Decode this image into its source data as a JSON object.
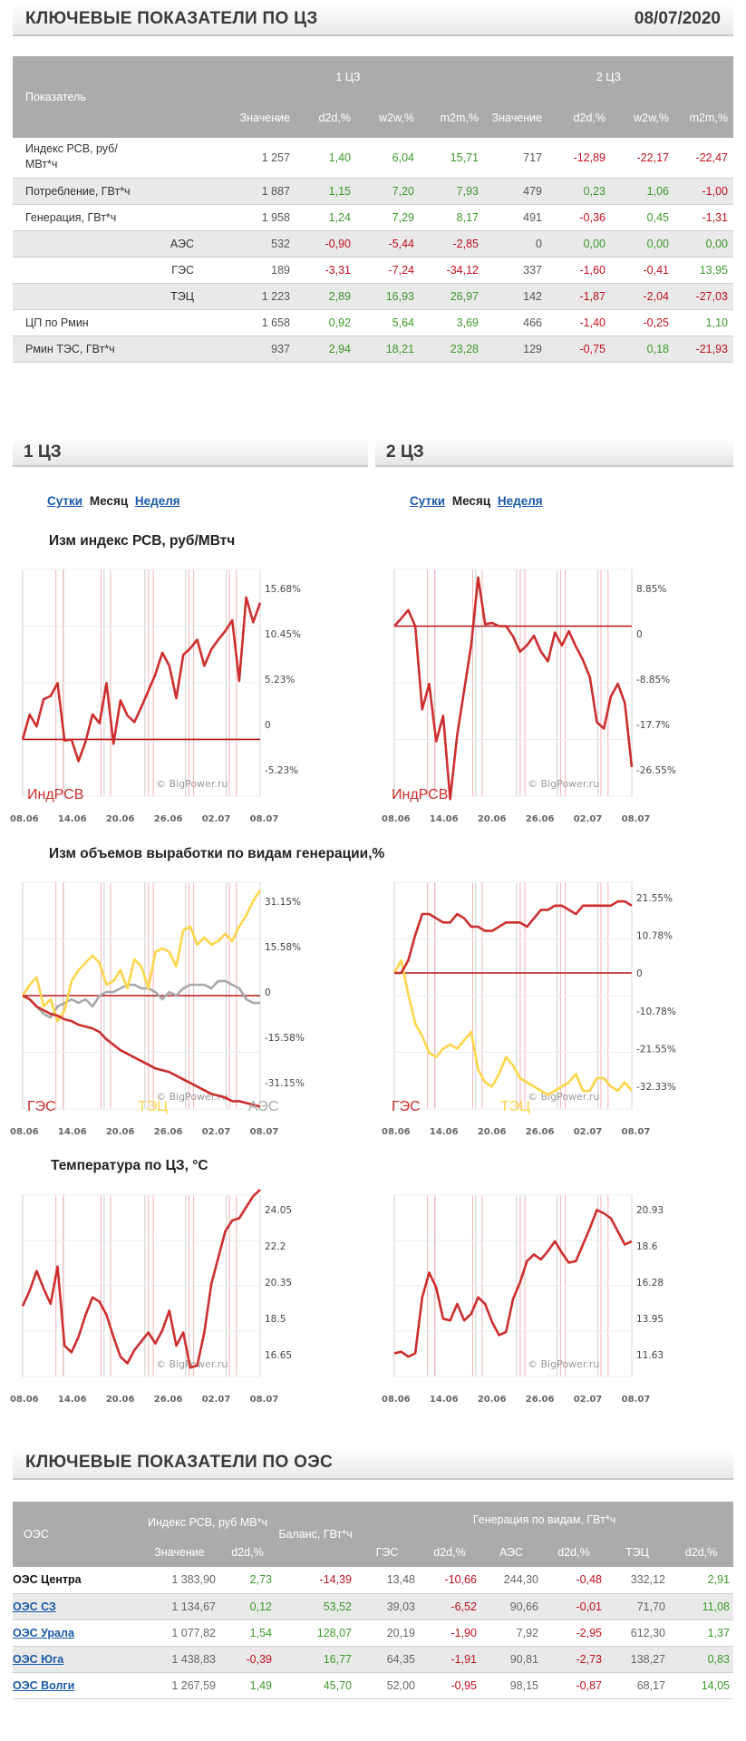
{
  "header": {
    "title": "КЛЮЧЕВЫЕ ПОКАЗАТЕЛИ ПО ЦЗ",
    "date": "08/07/2020"
  },
  "kpi": {
    "col_indicator": "Показатель",
    "zone1": "1 ЦЗ",
    "zone2": "2 ЦЗ",
    "subcols": [
      "Значение",
      "d2d,%",
      "w2w,%",
      "m2m,%",
      "Значение",
      "d2d,%",
      "w2w,%",
      "m2m,%"
    ],
    "rows": [
      {
        "label": "Индекс РСВ, руб/МВт*ч",
        "indent": false,
        "values": [
          "1 257",
          "1,40",
          "6,04",
          "15,71",
          "717",
          "-12,89",
          "-22,17",
          "-22,47"
        ]
      },
      {
        "label": "Потребление, ГВт*ч",
        "indent": false,
        "values": [
          "1 887",
          "1,15",
          "7,20",
          "7,93",
          "479",
          "0,23",
          "1,06",
          "-1,00"
        ]
      },
      {
        "label": "Генерация, ГВт*ч",
        "indent": false,
        "values": [
          "1 958",
          "1,24",
          "7,29",
          "8,17",
          "491",
          "-0,36",
          "0,45",
          "-1,31"
        ]
      },
      {
        "label": "АЭС",
        "indent": true,
        "values": [
          "532",
          "-0,90",
          "-5,44",
          "-2,85",
          "0",
          "0,00",
          "0,00",
          "0,00"
        ]
      },
      {
        "label": "ГЭС",
        "indent": true,
        "values": [
          "189",
          "-3,31",
          "-7,24",
          "-34,12",
          "337",
          "-1,60",
          "-0,41",
          "13,95"
        ]
      },
      {
        "label": "ТЭЦ",
        "indent": true,
        "values": [
          "1 223",
          "2,89",
          "16,93",
          "26,97",
          "142",
          "-1,87",
          "-2,04",
          "-27,03"
        ]
      },
      {
        "label": "ЦП по Рмин",
        "indent": false,
        "values": [
          "1 658",
          "0,92",
          "5,64",
          "3,69",
          "466",
          "-1,40",
          "-0,25",
          "1,10"
        ]
      },
      {
        "label": "Рмин ТЭС, ГВт*ч",
        "indent": false,
        "values": [
          "937",
          "2,94",
          "18,21",
          "23,28",
          "129",
          "-0,75",
          "0,18",
          "-21,93"
        ]
      }
    ]
  },
  "zones": {
    "z1": {
      "title": "1 ЦЗ",
      "periods": {
        "day": "Сутки",
        "month": "Месяц",
        "week": "Неделя"
      }
    },
    "z2": {
      "title": "2 ЦЗ",
      "periods": {
        "day": "Сутки",
        "month": "Месяц",
        "week": "Неделя"
      }
    }
  },
  "chart_titles": {
    "price": "Изм индекс РСВ, руб/МВтч",
    "gen": "Изм объемов выработки по видам генерации,%",
    "temp": "Температура по ЦЗ, °С"
  },
  "watermark": "© BigPower.ru",
  "colors": {
    "red": "#cc2e2e",
    "yellow": "#ffd54a",
    "gray": "#a8a8a8",
    "pos": "#3c9a2a",
    "neg": "#c0101e",
    "header": "#ababab"
  },
  "chart_data": [
    {
      "id": "price_z1",
      "type": "line",
      "x_ticks": [
        "08.06",
        "14.06",
        "20.06",
        "26.06",
        "02.07",
        "08.07"
      ],
      "y_ticks": [
        "15.68%",
        "10.45%",
        "5.23%",
        "0",
        "-5.23%"
      ],
      "ylim": [
        -5.23,
        15.68
      ],
      "series": [
        {
          "name": "ИндРСВ",
          "values": [
            0,
            2.3,
            1.2,
            3.7,
            4.0,
            5.2,
            -0.1,
            0,
            -2.0,
            -0.2,
            2.3,
            1.5,
            5.2,
            -0.4,
            3.6,
            2.2,
            1.6,
            3.0,
            4.5,
            6.0,
            8.0,
            6.8,
            3.8,
            7.8,
            8.4,
            9.2,
            6.8,
            8.3,
            9.2,
            10.0,
            11.0,
            5.4,
            13.1,
            10.8,
            12.6
          ]
        }
      ]
    },
    {
      "id": "price_z2",
      "type": "line",
      "x_ticks": [
        "08.06",
        "14.06",
        "20.06",
        "26.06",
        "02.07",
        "08.07"
      ],
      "y_ticks": [
        "8.85%",
        "0",
        "-8.85%",
        "-17.7%",
        "-26.55%"
      ],
      "ylim": [
        -26.55,
        8.85
      ],
      "series": [
        {
          "name": "ИндРСВ",
          "values": [
            0,
            1.2,
            2.5,
            0,
            -13,
            -9,
            -18,
            -14,
            -27,
            -17,
            -10,
            -3,
            7.6,
            0.3,
            0.5,
            0,
            0,
            -1.6,
            -4,
            -3,
            -1.5,
            -4,
            -5.5,
            -1,
            -3,
            -0.8,
            -3.2,
            -5.3,
            -8,
            -15,
            -16,
            -11,
            -9,
            -12,
            -22
          ]
        }
      ]
    },
    {
      "id": "gen_z1",
      "type": "line",
      "x_ticks": [
        "08.06",
        "14.06",
        "20.06",
        "26.06",
        "02.07",
        "08.07"
      ],
      "y_ticks": [
        "31.15%",
        "15.58%",
        "0",
        "-15.58%",
        "-31.15%"
      ],
      "ylim": [
        -31.15,
        31.15
      ],
      "series": [
        {
          "name": "ГЭС",
          "values": [
            0,
            -1,
            -3,
            -4,
            -5,
            -5.5,
            -6.5,
            -7,
            -8,
            -8.5,
            -9,
            -10,
            -12,
            -13.5,
            -15,
            -16,
            -17,
            -18,
            -19,
            -20,
            -20.5,
            -21,
            -22,
            -23,
            -24,
            -25,
            -26,
            -27,
            -27.5,
            -28,
            -29,
            -29,
            -29.5,
            -30,
            -30.5
          ]
        },
        {
          "name": "ТЭЦ",
          "values": [
            0,
            3,
            5,
            -3,
            -1,
            -7,
            -4,
            4,
            7,
            9,
            11,
            9,
            3,
            4,
            7,
            2,
            10,
            8,
            2,
            12,
            13,
            12,
            8,
            18,
            19,
            14,
            16,
            14,
            15,
            17,
            15,
            19,
            22,
            26,
            29
          ]
        },
        {
          "name": "АЭС",
          "values": [
            0,
            -1,
            -3,
            -5,
            -6,
            -3,
            -2,
            -1,
            -2,
            -1,
            -3,
            0,
            1,
            1,
            2,
            3,
            3,
            2,
            2,
            1,
            -1,
            1,
            0,
            2,
            3,
            3,
            3,
            2,
            4,
            4,
            3,
            2,
            -1,
            -2,
            -2
          ]
        }
      ]
    },
    {
      "id": "gen_z2",
      "type": "line",
      "x_ticks": [
        "08.06",
        "14.06",
        "20.06",
        "26.06",
        "02.07",
        "08.07"
      ],
      "y_ticks": [
        "21.55%",
        "10.78%",
        "0",
        "-10.78%",
        "-21.55%",
        "-32.33%"
      ],
      "ylim": [
        -32.33,
        21.55
      ],
      "series": [
        {
          "name": "ГЭС",
          "values": [
            0,
            0,
            3,
            9,
            14,
            14,
            13,
            12,
            12,
            14,
            13,
            11,
            11,
            10,
            10,
            11,
            12,
            12,
            12,
            11,
            13,
            15,
            15,
            16,
            16,
            15,
            14,
            16,
            16,
            16,
            16,
            16,
            17,
            17,
            16
          ]
        },
        {
          "name": "ТЭЦ",
          "values": [
            0,
            3,
            -5,
            -12,
            -15,
            -19,
            -20,
            -18,
            -17,
            -18,
            -16,
            -14,
            -23,
            -26,
            -27,
            -24,
            -20,
            -22,
            -25,
            -26,
            -27,
            -28,
            -29,
            -28,
            -27,
            -26,
            -24,
            -28,
            -28,
            -25,
            -25,
            -27,
            -28,
            -26,
            -28
          ]
        }
      ]
    },
    {
      "id": "temp_z1",
      "type": "line",
      "x_ticks": [
        "08.06",
        "14.06",
        "20.06",
        "26.06",
        "02.07",
        "08.07"
      ],
      "y_ticks": [
        "24.05",
        "22.2",
        "20.35",
        "18.5",
        "16.65"
      ],
      "ylim": [
        15.8,
        24.05
      ],
      "series": [
        {
          "name": "Температура",
          "values": [
            19.0,
            19.7,
            20.6,
            19.8,
            19.1,
            20.8,
            17.2,
            16.9,
            17.6,
            18.6,
            19.4,
            19.2,
            18.6,
            17.6,
            16.7,
            16.4,
            17.0,
            17.4,
            17.8,
            17.3,
            17.9,
            18.8,
            17.2,
            17.8,
            16.2,
            16.3,
            17.8,
            20.0,
            21.2,
            22.4,
            22.9,
            23.0,
            23.5,
            24.0,
            24.3
          ]
        }
      ]
    },
    {
      "id": "temp_z2",
      "type": "line",
      "x_ticks": [
        "08.06",
        "14.06",
        "20.06",
        "26.06",
        "02.07",
        "08.07"
      ],
      "y_ticks": [
        "20.93",
        "18.6",
        "16.28",
        "13.95",
        "11.63"
      ],
      "ylim": [
        10.8,
        21.8
      ],
      "series": [
        {
          "name": "Температура",
          "values": [
            12.2,
            12.3,
            12.0,
            12.2,
            15.6,
            17.1,
            16.2,
            14.3,
            14.2,
            15.2,
            14.2,
            14.6,
            15.6,
            15.2,
            14.1,
            13.3,
            13.5,
            15.5,
            16.5,
            17.8,
            18.2,
            17.9,
            18.4,
            19.0,
            18.3,
            17.7,
            17.8,
            18.8,
            19.8,
            20.9,
            20.7,
            20.4,
            19.6,
            18.8,
            19.0
          ]
        }
      ]
    }
  ],
  "oes": {
    "title": "КЛЮЧЕВЫЕ ПОКАЗАТЕЛИ ПО ОЭС",
    "col_oes": "ОЭС",
    "col_index": "Индекс РСВ, руб МВ*ч",
    "col_balance": "Баланс, ГВт*ч",
    "col_gen": "Генерация по видам, ГВт*ч",
    "subcols": [
      "Значение",
      "d2d,%",
      "ГЭС",
      "d2d,%",
      "АЭС",
      "d2d,%",
      "ТЭЦ",
      "d2d,%"
    ],
    "rows": [
      {
        "name": "ОЭС Центра",
        "link": false,
        "values": [
          "1 383,90",
          "2,73",
          "-14,39",
          "13,48",
          "-10,66",
          "244,30",
          "-0,48",
          "332,12",
          "2,91"
        ]
      },
      {
        "name": "ОЭС СЗ",
        "link": true,
        "values": [
          "1 134,67",
          "0,12",
          "53,52",
          "39,03",
          "-6,52",
          "90,66",
          "-0,01",
          "71,70",
          "11,08"
        ]
      },
      {
        "name": "ОЭС Урала",
        "link": true,
        "values": [
          "1 077,82",
          "1,54",
          "128,07",
          "20,19",
          "-1,90",
          "7,92",
          "-2,95",
          "612,30",
          "1,37"
        ]
      },
      {
        "name": "ОЭС Юга",
        "link": true,
        "values": [
          "1 438,83",
          "-0,39",
          "16,77",
          "64,35",
          "-1,91",
          "90,81",
          "-2,73",
          "138,27",
          "0,83"
        ]
      },
      {
        "name": "ОЭС Волги",
        "link": true,
        "values": [
          "1 267,59",
          "1,49",
          "45,70",
          "52,00",
          "-0,95",
          "98,15",
          "-0,87",
          "68,17",
          "14,05"
        ]
      }
    ]
  }
}
